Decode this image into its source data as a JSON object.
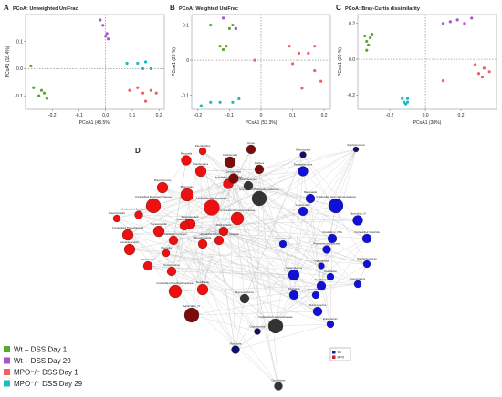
{
  "panels": [
    {
      "letter": "A",
      "title": "PCoA: Unweighted UniFrac",
      "xlabel": "PCoA1 (48.5%)",
      "ylabel": "PCoA1 (18.4%)",
      "xlim": [
        -0.3,
        0.22
      ],
      "ylim": [
        -0.15,
        0.2
      ],
      "xticks": [
        -0.2,
        -0.1,
        0.0,
        0.1,
        0.2
      ],
      "xtick_labels": [
        "-0.2",
        "-0.1",
        "0.0",
        "0.1",
        "0.2"
      ],
      "yticks": [
        -0.1,
        0.0,
        0.1
      ],
      "ytick_labels": [
        "-0.1",
        "0.0",
        "0.1"
      ],
      "series": [
        {
          "group": "wt1",
          "points": [
            [
              -0.28,
              0.01
            ],
            [
              -0.27,
              -0.07
            ],
            [
              -0.25,
              -0.1
            ],
            [
              -0.24,
              -0.08
            ],
            [
              -0.23,
              -0.09
            ],
            [
              -0.22,
              -0.11
            ]
          ]
        },
        {
          "group": "wt29",
          "points": [
            [
              -0.02,
              0.18
            ],
            [
              -0.01,
              0.16
            ],
            [
              0.0,
              0.12
            ],
            [
              0.01,
              0.11
            ],
            [
              0.005,
              0.13
            ]
          ]
        },
        {
          "group": "mpo1",
          "points": [
            [
              0.09,
              -0.08
            ],
            [
              0.12,
              -0.07
            ],
            [
              0.14,
              -0.09
            ],
            [
              0.15,
              -0.12
            ],
            [
              0.17,
              -0.08
            ],
            [
              0.19,
              -0.09
            ]
          ]
        },
        {
          "group": "mpo29",
          "points": [
            [
              0.08,
              0.02
            ],
            [
              0.12,
              0.02
            ],
            [
              0.15,
              0.025
            ],
            [
              0.14,
              0.0
            ],
            [
              0.17,
              0.0
            ]
          ]
        }
      ]
    },
    {
      "letter": "B",
      "title": "PCoA: Weighted UniFrac",
      "xlabel": "PCoA1 (53.3%)",
      "ylabel": "PCoA1 (23 %)",
      "xlim": [
        -0.22,
        0.22
      ],
      "ylim": [
        -0.14,
        0.13
      ],
      "xticks": [
        -0.2,
        -0.1,
        0.0,
        0.1,
        0.2
      ],
      "xtick_labels": [
        "-0.2",
        "-0.1",
        "0",
        "0.1",
        "0.2"
      ],
      "yticks": [
        -0.1,
        0.0,
        0.1
      ],
      "ytick_labels": [
        "-0.1",
        "0",
        "0.1"
      ],
      "series": [
        {
          "group": "wt1",
          "points": [
            [
              -0.16,
              0.1
            ],
            [
              -0.13,
              0.04
            ],
            [
              -0.12,
              0.03
            ],
            [
              -0.11,
              0.04
            ],
            [
              -0.09,
              0.1
            ],
            [
              -0.08,
              0.09
            ],
            [
              -0.1,
              0.09
            ]
          ]
        },
        {
          "group": "wt29",
          "points": [
            [
              -0.12,
              0.12
            ],
            [
              -0.08,
              0.09
            ]
          ]
        },
        {
          "group": "mpo1",
          "points": [
            [
              -0.02,
              0.0
            ],
            [
              0.09,
              0.04
            ],
            [
              0.12,
              0.02
            ],
            [
              0.15,
              0.02
            ],
            [
              0.17,
              0.04
            ],
            [
              0.17,
              -0.03
            ],
            [
              0.19,
              -0.06
            ],
            [
              0.13,
              -0.08
            ],
            [
              0.1,
              -0.01
            ]
          ]
        },
        {
          "group": "mpo29",
          "points": [
            [
              -0.19,
              -0.13
            ],
            [
              -0.16,
              -0.12
            ],
            [
              -0.13,
              -0.12
            ],
            [
              -0.09,
              -0.12
            ],
            [
              -0.07,
              -0.11
            ]
          ]
        }
      ]
    },
    {
      "letter": "C",
      "title": "PCoA: Bray-Curtis dissimilarity",
      "xlabel": "PCoA1 (38%)",
      "ylabel": "PCoA1 (20 %)",
      "xlim": [
        -0.38,
        0.4
      ],
      "ylim": [
        -0.28,
        0.25
      ],
      "xticks": [
        -0.2,
        0.0,
        0.2
      ],
      "xtick_labels": [
        "-0.2",
        "0.0",
        "0.2"
      ],
      "yticks": [
        -0.2,
        0.0,
        0.2
      ],
      "ytick_labels": [
        "-0.2",
        "0.0",
        "0.2"
      ],
      "series": [
        {
          "group": "wt1",
          "points": [
            [
              -0.34,
              0.13
            ],
            [
              -0.33,
              0.1
            ],
            [
              -0.32,
              0.08
            ],
            [
              -0.31,
              0.12
            ],
            [
              -0.33,
              0.05
            ],
            [
              -0.3,
              0.14
            ]
          ]
        },
        {
          "group": "wt29",
          "points": [
            [
              0.1,
              0.2
            ],
            [
              0.14,
              0.21
            ],
            [
              0.18,
              0.22
            ],
            [
              0.22,
              0.2
            ],
            [
              0.26,
              0.23
            ]
          ]
        },
        {
          "group": "mpo1",
          "points": [
            [
              0.1,
              -0.12
            ],
            [
              0.28,
              -0.03
            ],
            [
              0.33,
              -0.05
            ],
            [
              0.36,
              -0.07
            ],
            [
              0.3,
              -0.08
            ],
            [
              0.32,
              -0.1
            ]
          ]
        },
        {
          "group": "mpo29",
          "points": [
            [
              -0.13,
              -0.22
            ],
            [
              -0.12,
              -0.24
            ],
            [
              -0.11,
              -0.25
            ],
            [
              -0.1,
              -0.24
            ],
            [
              -0.1,
              -0.22
            ]
          ]
        }
      ]
    }
  ],
  "groups": {
    "wt1": {
      "label": "Wt – DSS Day 1",
      "color": "#5aa82f"
    },
    "wt29": {
      "label": "Wt – DSS Day 29",
      "color": "#a855c9"
    },
    "mpo1": {
      "label": "MPO⁻/⁻ DSS Day 1",
      "color": "#f06060"
    },
    "mpo29": {
      "label": "MPO⁻/⁻ DSS Day 29",
      "color": "#18bcc1"
    }
  },
  "legend_order": [
    "wt1",
    "wt29",
    "mpo1",
    "mpo29"
  ],
  "network": {
    "letter": "D",
    "legend": [
      {
        "label": "WT",
        "color": "#1a1a8c"
      },
      {
        "label": "MPO",
        "color": "#c0203a"
      }
    ],
    "colors": {
      "wt": "#1010d8",
      "wtdark": "#101068",
      "mpo": "#ee1010",
      "mpodark": "#7a0c0c",
      "gray": "#333333"
    },
    "nodes": [
      {
        "label": "Oscillibacter",
        "type": "gray",
        "size": 4.5
      },
      {
        "label": "Roseburia",
        "type": "wtdark",
        "size": 4.5
      },
      {
        "label": "Coprobacillus",
        "type": "wtdark",
        "size": 3.5
      },
      {
        "label": "Unclassified Lachnospiraceae",
        "type": "gray",
        "size": 8
      },
      {
        "label": "Ruminococcus2",
        "type": "gray",
        "size": 5
      },
      {
        "label": "Clostridium_IV",
        "type": "mpodark",
        "size": 8
      },
      {
        "label": "Unclassified Desulfovibrionaceae",
        "type": "mpo",
        "size": 7
      },
      {
        "label": "Turicibacter",
        "type": "mpo",
        "size": 6
      },
      {
        "label": "Streptococcus",
        "type": "mpo",
        "size": 5
      },
      {
        "label": "Allobaculum",
        "type": "mpo",
        "size": 5
      },
      {
        "label": "Olsenella",
        "type": "mpo",
        "size": 4
      },
      {
        "label": "Acetitomaculum",
        "type": "mpo",
        "size": 6
      },
      {
        "label": "Parasutterella",
        "type": "mpo",
        "size": 6
      },
      {
        "label": "Unclassified Proteobacteria",
        "type": "mpo",
        "size": 6
      },
      {
        "label": "Eisenbergiella",
        "type": "mpo",
        "size": 4
      },
      {
        "label": "Unclassified Coriobacteriaceae",
        "type": "mpo",
        "size": 4.5
      },
      {
        "label": "Unclassified Erysipelotrichaceae",
        "type": "mpo",
        "size": 8
      },
      {
        "label": "Bacteroides",
        "type": "mpo",
        "size": 7
      },
      {
        "label": "Butyricicoccus",
        "type": "mpo",
        "size": 6
      },
      {
        "label": "Unclassified Clostridiales_Incertae",
        "type": "mpo",
        "size": 5
      },
      {
        "label": "Unclassified Bacteroidetes",
        "type": "mpo",
        "size": 8.5
      },
      {
        "label": "Parasutterella2",
        "type": "mpo",
        "size": 6
      },
      {
        "label": "Unclassified Ruminococcaceae",
        "type": "mpo",
        "size": 7
      },
      {
        "label": "Marvinbryantia",
        "type": "mpo",
        "size": 5
      },
      {
        "label": "Coprococcus",
        "type": "mpo",
        "size": 6
      },
      {
        "label": "Eubacterium",
        "type": "mpo",
        "size": 5
      },
      {
        "label": "Unclassified Clostridiales",
        "type": "mpo",
        "size": 5.5
      },
      {
        "label": "Robinsoniella",
        "type": "mpo",
        "size": 5
      },
      {
        "label": "Unclassified Firmicutes",
        "type": "mpo",
        "size": 5
      },
      {
        "label": "Paenibacillus",
        "type": "mpo",
        "size": 4
      },
      {
        "label": "Prevotella",
        "type": "mpo",
        "size": 5.5
      },
      {
        "label": "Lactobacillus",
        "type": "mpodark",
        "size": 5.5
      },
      {
        "label": "Corlinkonella",
        "type": "mpodark",
        "size": 6
      },
      {
        "label": "Dorea",
        "type": "mpodark",
        "size": 5
      },
      {
        "label": "Alistipes",
        "type": "mpodark",
        "size": 5
      },
      {
        "label": "Unclassified Porphyromonadaceae",
        "type": "gray",
        "size": 8
      },
      {
        "label": "Bifidobacterium",
        "type": "gray",
        "size": 5
      },
      {
        "label": "Akkermansia",
        "type": "wtdark",
        "size": 3.5
      },
      {
        "label": "Staphylococcus",
        "type": "wtdark",
        "size": 3
      },
      {
        "label": "Parabacteroides",
        "type": "wt",
        "size": 5.5
      },
      {
        "label": "Barnesiella",
        "type": "wt",
        "size": 5
      },
      {
        "label": "Unclassified Gammaproteobacteria",
        "type": "wt",
        "size": 8
      },
      {
        "label": "Anaerotruncus",
        "type": "wt",
        "size": 4
      },
      {
        "label": "Leuconostoc",
        "type": "wt",
        "size": 5
      },
      {
        "label": "Clostridium_XIVa",
        "type": "wt",
        "size": 5
      },
      {
        "label": "Unclassified Clostridia",
        "type": "wt",
        "size": 5
      },
      {
        "label": "Clostridium_IV",
        "type": "wt",
        "size": 5.5
      },
      {
        "label": "Peptostreptococcaceae",
        "type": "wt",
        "size": 4.5
      },
      {
        "label": "Coprobacillus",
        "type": "wt",
        "size": 3.5
      },
      {
        "label": "Anaeroplasma",
        "type": "wt",
        "size": 6
      },
      {
        "label": "Catabacter",
        "type": "wt",
        "size": 4
      },
      {
        "label": "Syntrophococcus",
        "type": "wt",
        "size": 4
      },
      {
        "label": "Turicibacter",
        "type": "wt",
        "size": 5
      },
      {
        "label": "Butyrivibrio",
        "type": "wt",
        "size": 5
      },
      {
        "label": "Enterorhabdus",
        "type": "wt",
        "size": 4
      },
      {
        "label": "Coprococcus",
        "type": "wt",
        "size": 4
      },
      {
        "label": "Ruminococcus",
        "type": "wt",
        "size": 5
      },
      {
        "label": "Eubacterium",
        "type": "wt",
        "size": 4
      }
    ]
  }
}
